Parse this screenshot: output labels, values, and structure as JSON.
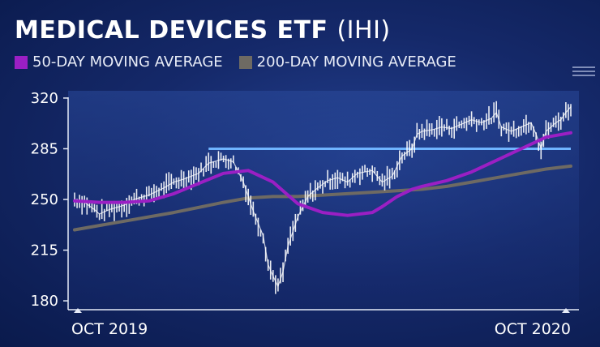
{
  "title": {
    "main": "MEDICAL DEVICES ETF",
    "ticker": "(IHI)"
  },
  "legend": [
    {
      "label": "50-DAY MOVING AVERAGE",
      "color": "#9b1fc4"
    },
    {
      "label": "200-DAY MOVING AVERAGE",
      "color": "#6e6a63"
    }
  ],
  "chart_data": {
    "type": "line",
    "title": "MEDICAL DEVICES ETF (IHI)",
    "x_tick_labels": [
      "OCT 2019",
      "OCT 2020"
    ],
    "y_ticks": [
      180,
      215,
      250,
      285,
      320
    ],
    "ylim": [
      175,
      325
    ],
    "grid": false,
    "legend_position": "top-left",
    "resistance_level": 285,
    "resistance_color": "#6fb4ff",
    "price_color": "#ffffff",
    "series": [
      {
        "name": "50-DAY MOVING AVERAGE",
        "color": "#9b1fc4",
        "x": [
          0,
          5,
          10,
          15,
          20,
          25,
          30,
          35,
          40,
          45,
          50,
          55,
          60,
          62,
          65,
          68,
          70,
          75,
          80,
          85,
          90,
          95,
          100
        ],
        "values": [
          249,
          248,
          248,
          249,
          254,
          261,
          268,
          270,
          262,
          247,
          241,
          239,
          241,
          245,
          252,
          257,
          259,
          263,
          269,
          277,
          285,
          293,
          296
        ]
      },
      {
        "name": "200-DAY MOVING AVERAGE",
        "color": "#6e6a63",
        "x": [
          0,
          10,
          20,
          30,
          35,
          40,
          45,
          50,
          55,
          60,
          65,
          70,
          75,
          80,
          85,
          90,
          95,
          100
        ],
        "values": [
          229,
          235,
          241,
          248,
          251,
          252,
          252,
          253,
          254,
          255,
          256,
          257,
          259,
          262,
          265,
          268,
          271,
          273
        ]
      },
      {
        "name": "",
        "color": "#ffffff",
        "x": [
          0,
          2,
          4,
          5,
          7,
          10,
          12,
          15,
          18,
          20,
          22,
          25,
          27,
          30,
          32,
          34,
          36,
          38,
          39,
          40,
          41,
          42,
          43,
          45,
          47,
          49,
          51,
          53,
          55,
          57,
          60,
          62,
          64,
          65,
          66,
          68,
          69,
          70,
          72,
          74,
          76,
          78,
          80,
          82,
          84,
          85,
          86,
          88,
          90,
          92,
          93,
          94,
          95,
          96,
          97,
          98,
          99,
          100
        ],
        "values": [
          250,
          248,
          243,
          240,
          243,
          246,
          250,
          253,
          258,
          262,
          264,
          268,
          275,
          278,
          276,
          262,
          242,
          225,
          205,
          197,
          190,
          200,
          218,
          238,
          252,
          258,
          263,
          265,
          262,
          268,
          270,
          262,
          266,
          273,
          280,
          285,
          295,
          297,
          298,
          300,
          299,
          302,
          305,
          303,
          306,
          310,
          300,
          297,
          300,
          303,
          295,
          285,
          297,
          300,
          303,
          305,
          310,
          314
        ]
      }
    ]
  }
}
